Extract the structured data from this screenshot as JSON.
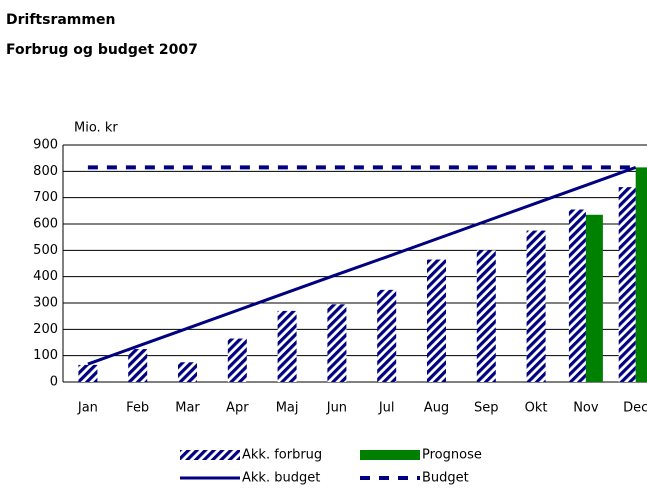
{
  "chart_data": {
    "type": "bar",
    "title": "Driftsrammen",
    "subtitle": "Forbrug og budget 2007",
    "y_label": "Mio. kr",
    "categories": [
      "Jan",
      "Feb",
      "Mar",
      "Apr",
      "Maj",
      "Jun",
      "Jul",
      "Aug",
      "Sep",
      "Okt",
      "Nov",
      "Dec"
    ],
    "series": [
      {
        "name": "Akk. forbrug",
        "color": "#000080",
        "kind": "bar",
        "pattern": "hatch",
        "values": [
          65,
          125,
          75,
          165,
          270,
          295,
          350,
          465,
          500,
          575,
          655,
          740
        ]
      },
      {
        "name": "Prognose",
        "color": "#008000",
        "kind": "bar",
        "values": [
          null,
          null,
          null,
          null,
          null,
          null,
          null,
          null,
          null,
          null,
          635,
          815
        ]
      },
      {
        "name": "Akk. budget",
        "color": "#000080",
        "kind": "line",
        "values": [
          68,
          136,
          204,
          272,
          340,
          408,
          475,
          543,
          611,
          679,
          747,
          815
        ]
      },
      {
        "name": "Budget",
        "color": "#000080",
        "kind": "dashed",
        "values": [
          815,
          815,
          815,
          815,
          815,
          815,
          815,
          815,
          815,
          815,
          815,
          815
        ]
      }
    ],
    "ylim": [
      0,
      900
    ],
    "yticks": [
      0,
      100,
      200,
      300,
      400,
      500,
      600,
      700,
      800,
      900
    ],
    "grid": true
  }
}
